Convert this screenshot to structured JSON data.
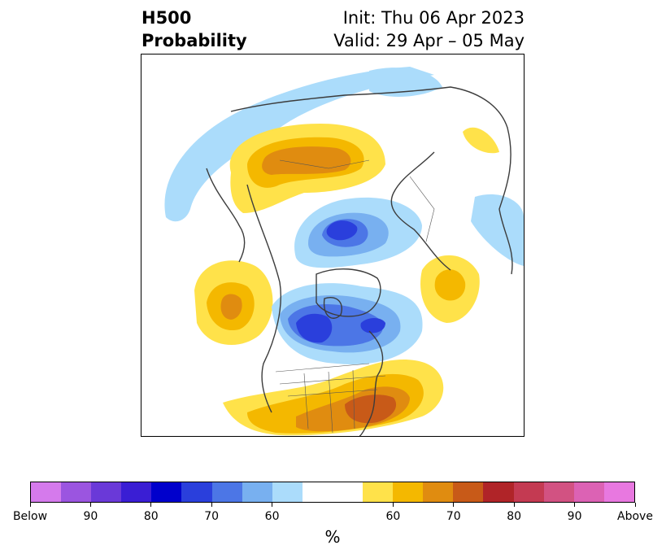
{
  "title": {
    "left_line1": "H500",
    "left_line2": "Probability",
    "right_line1": "Init: Thu 06 Apr 2023",
    "right_line2": "Valid: 29 Apr – 05 May"
  },
  "colorbar": {
    "colors": [
      "#d57aec",
      "#9b55e0",
      "#6a39d8",
      "#3a1ed4",
      "#0000cc",
      "#2a3fdc",
      "#4c76e6",
      "#78b0f0",
      "#abdcfb",
      "#ffffff",
      "#ffffff",
      "#ffe24a",
      "#f4b800",
      "#e08c10",
      "#c85a18",
      "#b02428",
      "#c43a52",
      "#d25282",
      "#dc62b4",
      "#e878e0"
    ],
    "labels": [
      "Below",
      "90",
      "80",
      "70",
      "60",
      "60",
      "70",
      "80",
      "90",
      "Above"
    ],
    "unit": "%"
  },
  "map_colors": {
    "blue_light": "#abdcfb",
    "blue_mid": "#78b0f0",
    "blue_dark": "#4c76e6",
    "blue_deep": "#2a3fdc",
    "yellow": "#ffe24a",
    "gold": "#f4b800",
    "orange": "#e08c10",
    "rust": "#c85a18",
    "coast": "#3c3c3c"
  }
}
